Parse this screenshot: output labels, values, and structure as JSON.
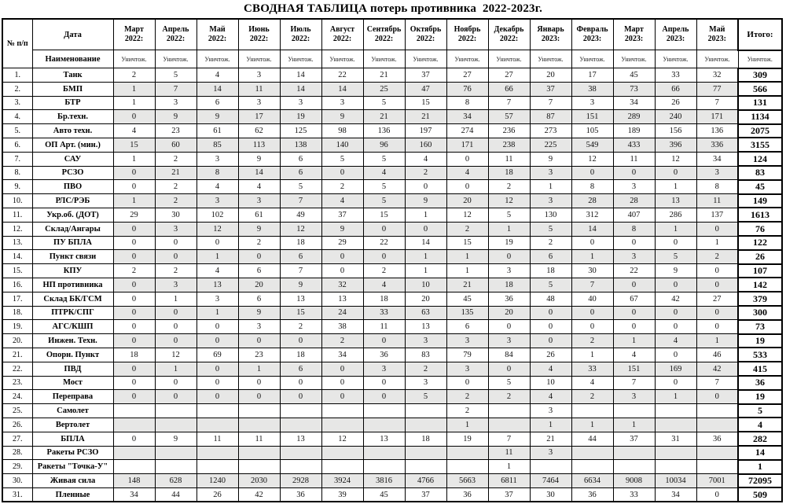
{
  "title": "СВОДНАЯ ТАБЛИЦА потерь противника  2022-2023г.",
  "table": {
    "corner_header": "№ п/п",
    "date_header": "Дата",
    "name_header": "Наименование",
    "destroyed_label": "Уничтож.",
    "total_header": "Итого:",
    "months": [
      {
        "name": "Март",
        "year": "2022:"
      },
      {
        "name": "Апрель",
        "year": "2022:"
      },
      {
        "name": "Май",
        "year": "2022:"
      },
      {
        "name": "Июнь",
        "year": "2022:"
      },
      {
        "name": "Июль",
        "year": "2022:"
      },
      {
        "name": "Август",
        "year": "2022:"
      },
      {
        "name": "Сентябрь",
        "year": "2022:"
      },
      {
        "name": "Октябрь",
        "year": "2022:"
      },
      {
        "name": "Ноябрь",
        "year": "2022:"
      },
      {
        "name": "Декабрь",
        "year": "2022:"
      },
      {
        "name": "Январь",
        "year": "2023:"
      },
      {
        "name": "Февраль",
        "year": "2023:"
      },
      {
        "name": "Март",
        "year": "2023:"
      },
      {
        "name": "Апрель",
        "year": "2023:"
      },
      {
        "name": "Май",
        "year": "2023:"
      }
    ],
    "rows": [
      {
        "num": "1.",
        "name": "Танк",
        "values": [
          2,
          5,
          4,
          3,
          14,
          22,
          21,
          37,
          27,
          27,
          20,
          17,
          45,
          33,
          32
        ],
        "total": 309
      },
      {
        "num": "2.",
        "name": "БМП",
        "values": [
          1,
          7,
          14,
          11,
          14,
          14,
          25,
          47,
          76,
          66,
          37,
          38,
          73,
          66,
          77
        ],
        "total": 566
      },
      {
        "num": "3.",
        "name": "БТР",
        "values": [
          1,
          3,
          6,
          3,
          3,
          3,
          5,
          15,
          8,
          7,
          7,
          3,
          34,
          26,
          7
        ],
        "total": 131
      },
      {
        "num": "4.",
        "name": "Бр.техн.",
        "values": [
          0,
          9,
          9,
          17,
          19,
          9,
          21,
          21,
          34,
          57,
          87,
          151,
          289,
          240,
          171
        ],
        "total": 1134
      },
      {
        "num": "5.",
        "name": "Авто техн.",
        "values": [
          4,
          23,
          61,
          62,
          125,
          98,
          136,
          197,
          274,
          236,
          273,
          105,
          189,
          156,
          136
        ],
        "total": 2075
      },
      {
        "num": "6.",
        "name": "ОП Арт. (мин.)",
        "values": [
          15,
          60,
          85,
          113,
          138,
          140,
          96,
          160,
          171,
          238,
          225,
          549,
          433,
          396,
          336
        ],
        "total": 3155
      },
      {
        "num": "7.",
        "name": "САУ",
        "values": [
          1,
          2,
          3,
          9,
          6,
          5,
          5,
          4,
          0,
          11,
          9,
          12,
          11,
          12,
          34
        ],
        "total": 124
      },
      {
        "num": "8.",
        "name": "РСЗО",
        "values": [
          0,
          21,
          8,
          14,
          6,
          0,
          4,
          2,
          4,
          18,
          3,
          0,
          0,
          0,
          3
        ],
        "total": 83
      },
      {
        "num": "9.",
        "name": "ПВО",
        "values": [
          0,
          2,
          4,
          4,
          5,
          2,
          5,
          0,
          0,
          2,
          1,
          8,
          3,
          1,
          8
        ],
        "total": 45
      },
      {
        "num": "10.",
        "name": "РЛС/РЭБ",
        "values": [
          1,
          2,
          3,
          3,
          7,
          4,
          5,
          9,
          20,
          12,
          3,
          28,
          28,
          13,
          11
        ],
        "total": 149
      },
      {
        "num": "11.",
        "name": "Укр.об. (ДОТ)",
        "values": [
          29,
          30,
          102,
          61,
          49,
          37,
          15,
          1,
          12,
          5,
          130,
          312,
          407,
          286,
          137
        ],
        "total": 1613
      },
      {
        "num": "12.",
        "name": "Склад/Ангары",
        "values": [
          0,
          3,
          12,
          9,
          12,
          9,
          0,
          0,
          2,
          1,
          5,
          14,
          8,
          1,
          0
        ],
        "total": 76
      },
      {
        "num": "13.",
        "name": "ПУ БПЛА",
        "values": [
          0,
          0,
          0,
          2,
          18,
          29,
          22,
          14,
          15,
          19,
          2,
          0,
          0,
          0,
          1
        ],
        "total": 122
      },
      {
        "num": "14.",
        "name": "Пункт связи",
        "values": [
          0,
          0,
          1,
          0,
          6,
          0,
          0,
          1,
          1,
          0,
          6,
          1,
          3,
          5,
          2
        ],
        "total": 26
      },
      {
        "num": "15.",
        "name": "КПУ",
        "values": [
          2,
          2,
          4,
          6,
          7,
          0,
          2,
          1,
          1,
          3,
          18,
          30,
          22,
          9,
          0
        ],
        "total": 107
      },
      {
        "num": "16.",
        "name": "НП противника",
        "values": [
          0,
          3,
          13,
          20,
          9,
          32,
          4,
          10,
          21,
          18,
          5,
          7,
          0,
          0,
          0
        ],
        "total": 142
      },
      {
        "num": "17.",
        "name": "Склад БК/ГСМ",
        "values": [
          0,
          1,
          3,
          6,
          13,
          13,
          18,
          20,
          45,
          36,
          48,
          40,
          67,
          42,
          27
        ],
        "total": 379
      },
      {
        "num": "18.",
        "name": "ПТРК/СПГ",
        "values": [
          0,
          0,
          1,
          9,
          15,
          24,
          33,
          63,
          135,
          20,
          0,
          0,
          0,
          0,
          0
        ],
        "total": 300
      },
      {
        "num": "19.",
        "name": "АГС/КШП",
        "values": [
          0,
          0,
          0,
          3,
          2,
          38,
          11,
          13,
          6,
          0,
          0,
          0,
          0,
          0,
          0
        ],
        "total": 73
      },
      {
        "num": "20.",
        "name": "Инжен. Техн.",
        "values": [
          0,
          0,
          0,
          0,
          0,
          2,
          0,
          3,
          3,
          3,
          0,
          2,
          1,
          4,
          1
        ],
        "total": 19
      },
      {
        "num": "21.",
        "name": "Опорн. Пункт",
        "values": [
          18,
          12,
          69,
          23,
          18,
          34,
          36,
          83,
          79,
          84,
          26,
          1,
          4,
          0,
          46
        ],
        "total": 533
      },
      {
        "num": "22.",
        "name": "ПВД",
        "values": [
          0,
          1,
          0,
          1,
          6,
          0,
          3,
          2,
          3,
          0,
          4,
          33,
          151,
          169,
          42
        ],
        "total": 415
      },
      {
        "num": "23.",
        "name": "Мост",
        "values": [
          0,
          0,
          0,
          0,
          0,
          0,
          0,
          3,
          0,
          5,
          10,
          4,
          7,
          0,
          7
        ],
        "total": 36
      },
      {
        "num": "24.",
        "name": "Переправа",
        "values": [
          0,
          0,
          0,
          0,
          0,
          0,
          0,
          5,
          2,
          2,
          4,
          2,
          3,
          1,
          0
        ],
        "total": 19
      },
      {
        "num": "25.",
        "name": "Самолет",
        "values": [
          "",
          "",
          "",
          "",
          "",
          "",
          "",
          "",
          2,
          "",
          3,
          "",
          "",
          "",
          ""
        ],
        "total": 5
      },
      {
        "num": "26.",
        "name": "Вертолет",
        "values": [
          "",
          "",
          "",
          "",
          "",
          "",
          "",
          "",
          1,
          "",
          1,
          1,
          1,
          "",
          ""
        ],
        "total": 4
      },
      {
        "num": "27.",
        "name": "БПЛА",
        "values": [
          0,
          9,
          11,
          11,
          13,
          12,
          13,
          18,
          19,
          7,
          21,
          44,
          37,
          31,
          36
        ],
        "total": 282
      },
      {
        "num": "28.",
        "name": "Ракеты РСЗО",
        "values": [
          "",
          "",
          "",
          "",
          "",
          "",
          "",
          "",
          "",
          11,
          3,
          "",
          "",
          "",
          ""
        ],
        "total": 14
      },
      {
        "num": "29.",
        "name": "Ракеты \"Точка-У\"",
        "values": [
          "",
          "",
          "",
          "",
          "",
          "",
          "",
          "",
          "",
          1,
          "",
          "",
          "",
          "",
          ""
        ],
        "total": 1
      },
      {
        "num": "30.",
        "name": "Живая сила",
        "values": [
          148,
          628,
          1240,
          2030,
          2928,
          3924,
          3816,
          4766,
          5663,
          6811,
          7464,
          6634,
          9008,
          10034,
          7001
        ],
        "total": 72095
      },
      {
        "num": "31.",
        "name": "Пленные",
        "values": [
          34,
          44,
          26,
          42,
          36,
          39,
          45,
          37,
          36,
          37,
          30,
          36,
          33,
          34,
          0
        ],
        "total": 509
      }
    ]
  }
}
